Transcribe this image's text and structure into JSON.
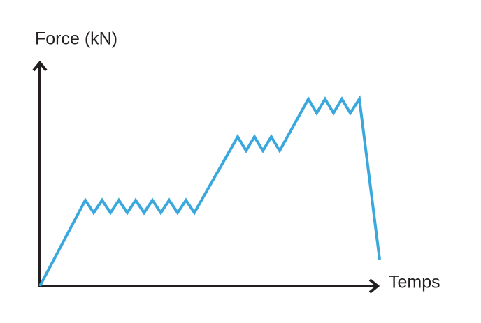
{
  "chart_data": {
    "type": "line",
    "y_label": "Force (kN)",
    "x_label": "Temps",
    "xlim": [
      0,
      483
    ],
    "ylim": [
      0,
      320
    ],
    "series": [
      {
        "color": "#3aa8dc",
        "x": [
          0,
          65,
          77,
          89,
          101,
          113,
          125,
          137,
          149,
          161,
          173,
          185,
          197,
          209,
          221,
          283,
          295,
          307,
          319,
          331,
          343,
          384,
          396,
          408,
          420,
          432,
          444,
          457,
          486
        ],
        "values": [
          0,
          123,
          105,
          123,
          105,
          123,
          105,
          123,
          105,
          123,
          105,
          123,
          105,
          123,
          105,
          214,
          194,
          214,
          194,
          214,
          194,
          268,
          248,
          268,
          248,
          268,
          248,
          268,
          38
        ]
      }
    ]
  }
}
